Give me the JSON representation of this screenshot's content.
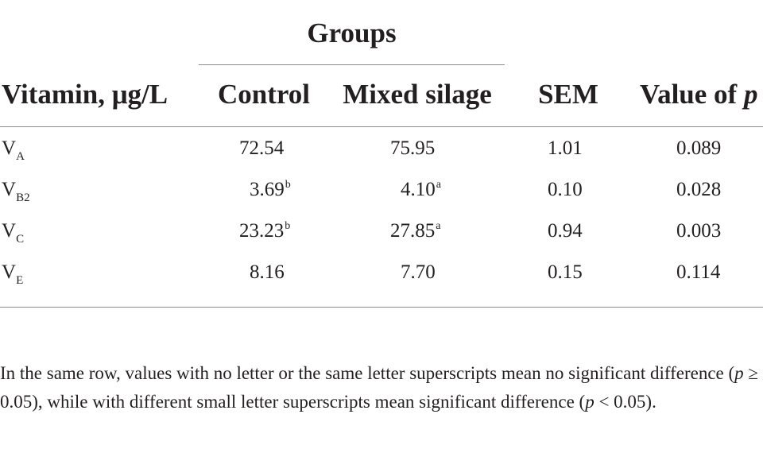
{
  "table": {
    "group_header": "Groups",
    "columns": {
      "vitamin": "Vitamin, μg/L",
      "control": "Control",
      "mixed": "Mixed silage",
      "sem": "SEM",
      "p_prefix": "Value of ",
      "p_symbol": "p"
    },
    "rows": [
      {
        "v": "V",
        "sub": "A",
        "control": "72.54",
        "control_sup": "",
        "mixed": "75.95",
        "mixed_sup": "",
        "sem": "1.01",
        "p": "0.089"
      },
      {
        "v": "V",
        "sub": "B2",
        "control": "3.69",
        "control_sup": "b",
        "mixed": "4.10",
        "mixed_sup": "a",
        "sem": "0.10",
        "p": "0.028"
      },
      {
        "v": "V",
        "sub": "C",
        "control": "23.23",
        "control_sup": "b",
        "mixed": "27.85",
        "mixed_sup": "a",
        "sem": "0.94",
        "p": "0.003"
      },
      {
        "v": "V",
        "sub": "E",
        "control": "8.16",
        "control_sup": "",
        "mixed": "7.70",
        "mixed_sup": "",
        "sem": "0.15",
        "p": "0.114"
      }
    ]
  },
  "footnote": {
    "part1": "In the same row, values with no letter or the same letter superscripts mean no significant difference (",
    "p1": "p",
    "part2": " ≥ 0.05), while with different small letter superscripts mean significant difference (",
    "p2": "p",
    "part3": " < 0.05)."
  }
}
